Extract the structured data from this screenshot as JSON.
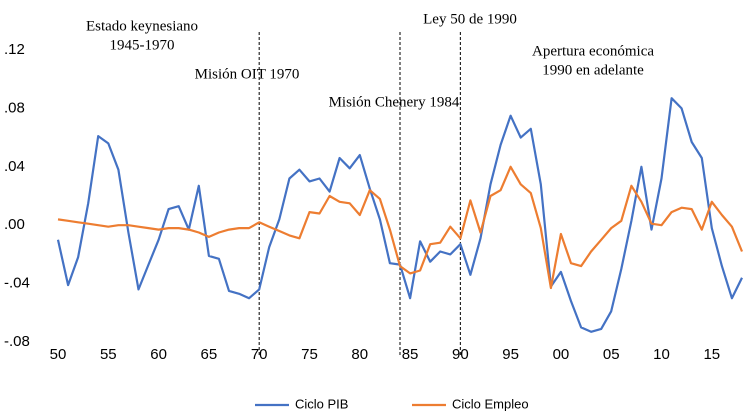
{
  "chart_data": {
    "type": "line",
    "x": [
      1950,
      1951,
      1952,
      1953,
      1954,
      1955,
      1956,
      1957,
      1958,
      1959,
      1960,
      1961,
      1962,
      1963,
      1964,
      1965,
      1966,
      1967,
      1968,
      1969,
      1970,
      1971,
      1972,
      1973,
      1974,
      1975,
      1976,
      1977,
      1978,
      1979,
      1980,
      1981,
      1982,
      1983,
      1984,
      1985,
      1986,
      1987,
      1988,
      1989,
      1990,
      1991,
      1992,
      1993,
      1994,
      1995,
      1996,
      1997,
      1998,
      1999,
      2000,
      2001,
      2002,
      2003,
      2004,
      2005,
      2006,
      2007,
      2008,
      2009,
      2010,
      2011,
      2012,
      2013,
      2014,
      2015,
      2016,
      2017,
      2018
    ],
    "series": [
      {
        "name": "Ciclo PIB",
        "color": "#4472c4",
        "values": [
          -0.01,
          -0.041,
          -0.022,
          0.015,
          0.061,
          0.056,
          0.038,
          -0.005,
          -0.044,
          -0.027,
          -0.01,
          0.011,
          0.013,
          -0.003,
          0.027,
          -0.021,
          -0.023,
          -0.045,
          -0.047,
          -0.05,
          -0.044,
          -0.015,
          0.004,
          0.032,
          0.038,
          0.03,
          0.032,
          0.023,
          0.046,
          0.039,
          0.048,
          0.025,
          0.004,
          -0.026,
          -0.027,
          -0.05,
          -0.011,
          -0.025,
          -0.018,
          -0.02,
          -0.013,
          -0.034,
          -0.009,
          0.028,
          0.055,
          0.075,
          0.06,
          0.066,
          0.028,
          -0.042,
          -0.032,
          -0.052,
          -0.07,
          -0.073,
          -0.071,
          -0.059,
          -0.03,
          0.003,
          0.04,
          -0.003,
          0.032,
          0.087,
          0.08,
          0.057,
          0.046,
          -0.002,
          -0.028,
          -0.05,
          -0.036
        ]
      },
      {
        "name": "Ciclo Empleo",
        "color": "#ed7d31",
        "values": [
          0.004,
          0.003,
          0.002,
          0.001,
          0.0,
          -0.001,
          0.0,
          0.0,
          -0.001,
          -0.002,
          -0.003,
          -0.002,
          -0.002,
          -0.003,
          -0.005,
          -0.008,
          -0.005,
          -0.003,
          -0.002,
          -0.002,
          0.002,
          -0.001,
          -0.004,
          -0.007,
          -0.009,
          0.009,
          0.008,
          0.02,
          0.016,
          0.015,
          0.007,
          0.024,
          0.018,
          -0.003,
          -0.028,
          -0.033,
          -0.031,
          -0.013,
          -0.012,
          -0.001,
          -0.009,
          0.017,
          -0.005,
          0.02,
          0.024,
          0.04,
          0.028,
          0.022,
          -0.002,
          -0.043,
          -0.006,
          -0.026,
          -0.028,
          -0.018,
          -0.01,
          -0.002,
          0.003,
          0.027,
          0.016,
          0.001,
          0.0,
          0.009,
          0.012,
          0.011,
          -0.003,
          0.016,
          0.007,
          -0.001,
          -0.018
        ]
      }
    ],
    "xlim": [
      1950,
      2018
    ],
    "xticks": [
      {
        "value": 1950,
        "label": "50"
      },
      {
        "value": 1955,
        "label": "55"
      },
      {
        "value": 1960,
        "label": "60"
      },
      {
        "value": 1965,
        "label": "65"
      },
      {
        "value": 1970,
        "label": "70"
      },
      {
        "value": 1975,
        "label": "75"
      },
      {
        "value": 1980,
        "label": "80"
      },
      {
        "value": 1985,
        "label": "85"
      },
      {
        "value": 1990,
        "label": "90"
      },
      {
        "value": 1995,
        "label": "95"
      },
      {
        "value": 2000,
        "label": "00"
      },
      {
        "value": 2005,
        "label": "05"
      },
      {
        "value": 2010,
        "label": "10"
      },
      {
        "value": 2015,
        "label": "15"
      }
    ],
    "ylim": [
      -0.08,
      0.12
    ],
    "yticks": [
      {
        "value": 0.12,
        "label": ".12"
      },
      {
        "value": 0.08,
        "label": ".08"
      },
      {
        "value": 0.04,
        "label": ".04"
      },
      {
        "value": 0,
        "label": ".00"
      },
      {
        "value": -0.04,
        "label": "-.04"
      },
      {
        "value": -0.08,
        "label": "-.08"
      }
    ],
    "reference_lines": [
      1970,
      1984,
      1990
    ],
    "annotations": [
      [
        "Estado keynesiano",
        "1945-1970"
      ],
      [
        "Misión OIT 1970"
      ],
      [
        "Misión Chenery 1984"
      ],
      [
        "Ley 50 de 1990"
      ],
      [
        "Apertura económica",
        "1990 en adelante"
      ]
    ],
    "legend": "bottom"
  }
}
